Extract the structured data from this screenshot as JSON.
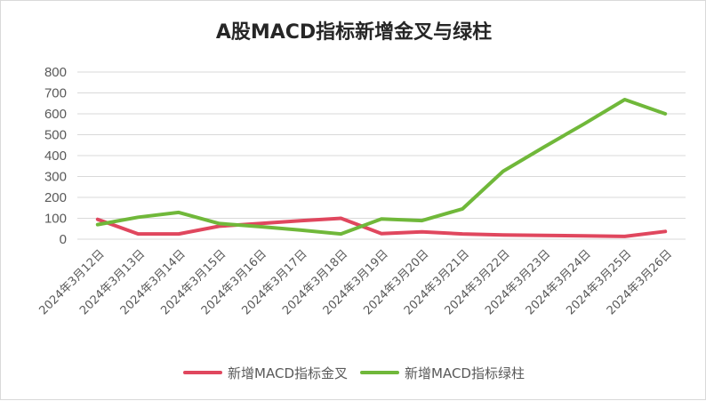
{
  "chart_data": {
    "type": "line",
    "title": "A股MACD指标新增金叉与绿柱",
    "categories": [
      "2024年3月12日",
      "2024年3月13日",
      "2024年3月14日",
      "2024年3月15日",
      "2024年3月16日",
      "2024年3月17日",
      "2024年3月18日",
      "2024年3月19日",
      "2024年3月20日",
      "2024年3月21日",
      "2024年3月22日",
      "2024年3月23日",
      "2024年3月24日",
      "2024年3月25日",
      "2024年3月26日"
    ],
    "series": [
      {
        "name": "新增MACD指标金叉",
        "color": "#e0475e",
        "values": [
          95,
          25,
          25,
          62,
          75,
          88,
          100,
          27,
          35,
          25,
          20,
          18,
          16,
          13,
          37
        ]
      },
      {
        "name": "新增MACD指标绿柱",
        "color": "#70b83a",
        "values": [
          70,
          105,
          128,
          75,
          60,
          44,
          25,
          97,
          89,
          145,
          325,
          440,
          552,
          668,
          600
        ]
      }
    ],
    "ylim": [
      0,
      800
    ],
    "yticks": [
      0,
      100,
      200,
      300,
      400,
      500,
      600,
      700,
      800
    ],
    "grid": true,
    "legend_position": "bottom",
    "xlabel": "",
    "ylabel": ""
  }
}
